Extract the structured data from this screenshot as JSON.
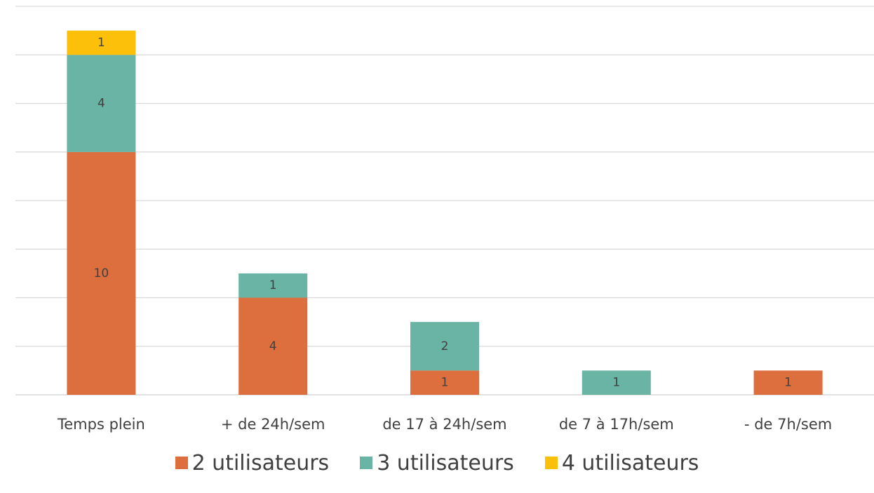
{
  "chart_data": {
    "type": "bar",
    "stacked": true,
    "title": "",
    "xlabel": "",
    "ylabel": "",
    "ylim": [
      0,
      16
    ],
    "grid": true,
    "y_tick_labels_shown": false,
    "legend_position": "bottom",
    "categories": [
      "Temps plein",
      "+ de 24h/sem",
      "de 17 à 24h/sem",
      "de 7 à 17h/sem",
      "- de 7h/sem"
    ],
    "series": [
      {
        "name": "2 utilisateurs",
        "color": "#DD6E3D",
        "values": [
          10,
          4,
          1,
          0,
          1
        ]
      },
      {
        "name": "3 utilisateurs",
        "color": "#69B4A5",
        "values": [
          4,
          1,
          2,
          1,
          0
        ]
      },
      {
        "name": "4 utilisateurs",
        "color": "#FCC00B",
        "values": [
          1,
          0,
          0,
          0,
          0
        ]
      }
    ],
    "data_labels": true
  }
}
